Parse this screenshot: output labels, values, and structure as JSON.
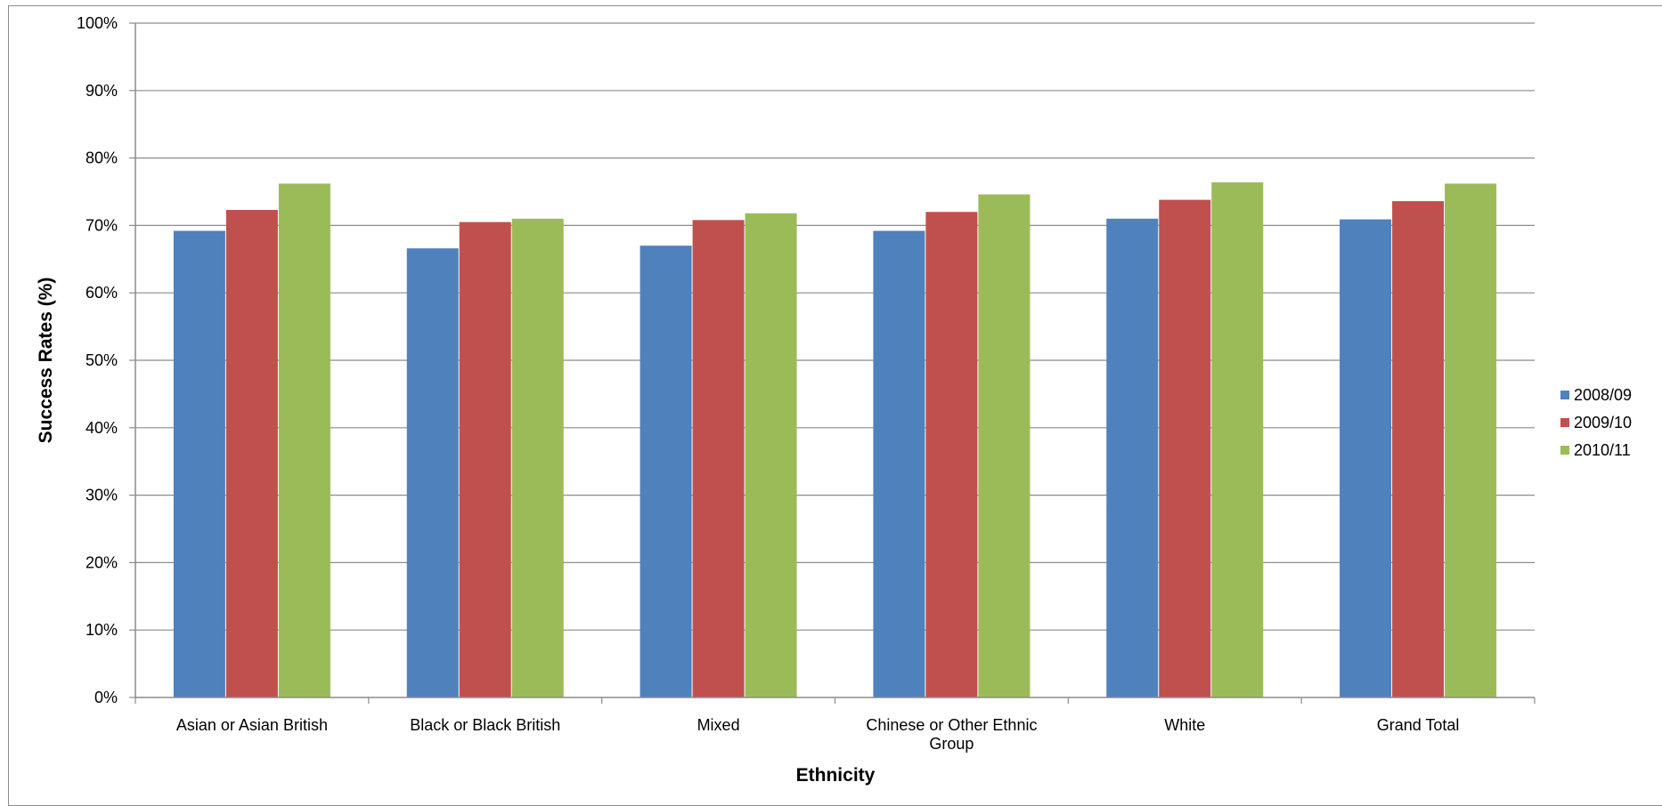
{
  "chart_data": {
    "type": "bar",
    "title": "",
    "xlabel": "Ethnicity",
    "ylabel": "Success Rates (%)",
    "ylim": [
      0,
      100
    ],
    "y_tick_format": "percent",
    "y_ticks": [
      "0%",
      "10%",
      "20%",
      "30%",
      "40%",
      "50%",
      "60%",
      "70%",
      "80%",
      "90%",
      "100%"
    ],
    "grid": true,
    "legend_position": "right",
    "categories": [
      [
        "Asian or Asian British"
      ],
      [
        "Black or Black British"
      ],
      [
        "Mixed"
      ],
      [
        "Chinese or Other Ethnic",
        "Group"
      ],
      [
        "White"
      ],
      [
        "Grand Total"
      ]
    ],
    "series": [
      {
        "name": "2008/09",
        "color": "#4f81bd",
        "values": [
          69.2,
          66.6,
          67.0,
          69.2,
          71.0,
          70.9
        ]
      },
      {
        "name": "2009/10",
        "color": "#c0504d",
        "values": [
          72.3,
          70.5,
          70.8,
          72.0,
          73.8,
          73.6
        ]
      },
      {
        "name": "2010/11",
        "color": "#9bbb59",
        "values": [
          76.2,
          71.0,
          71.8,
          74.6,
          76.4,
          76.2
        ]
      }
    ]
  }
}
